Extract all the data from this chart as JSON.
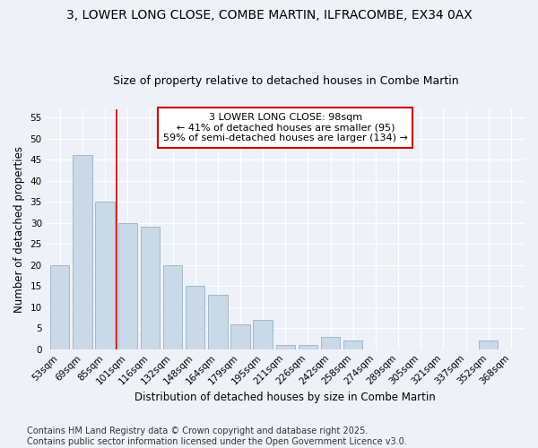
{
  "title": "3, LOWER LONG CLOSE, COMBE MARTIN, ILFRACOMBE, EX34 0AX",
  "subtitle": "Size of property relative to detached houses in Combe Martin",
  "xlabel": "Distribution of detached houses by size in Combe Martin",
  "ylabel": "Number of detached properties",
  "categories": [
    "53sqm",
    "69sqm",
    "85sqm",
    "101sqm",
    "116sqm",
    "132sqm",
    "148sqm",
    "164sqm",
    "179sqm",
    "195sqm",
    "211sqm",
    "226sqm",
    "242sqm",
    "258sqm",
    "274sqm",
    "289sqm",
    "305sqm",
    "321sqm",
    "337sqm",
    "352sqm",
    "368sqm"
  ],
  "values": [
    20,
    46,
    35,
    30,
    29,
    20,
    15,
    13,
    6,
    7,
    1,
    1,
    3,
    2,
    0,
    0,
    0,
    0,
    0,
    2,
    0
  ],
  "bar_color": "#c9d9e8",
  "bar_edge_color": "#a0b8cc",
  "vline_x": 2.5,
  "vline_color": "#cc0000",
  "annotation_text": "3 LOWER LONG CLOSE: 98sqm\n← 41% of detached houses are smaller (95)\n59% of semi-detached houses are larger (134) →",
  "annotation_box_color": "#ffffff",
  "annotation_box_edge_color": "#cc0000",
  "ylim": [
    0,
    57
  ],
  "yticks": [
    0,
    5,
    10,
    15,
    20,
    25,
    30,
    35,
    40,
    45,
    50,
    55
  ],
  "bg_color": "#eef2f8",
  "plot_bg_color": "#eef2f8",
  "footer": "Contains HM Land Registry data © Crown copyright and database right 2025.\nContains public sector information licensed under the Open Government Licence v3.0.",
  "title_fontsize": 10,
  "subtitle_fontsize": 9,
  "axis_label_fontsize": 8.5,
  "tick_fontsize": 7.5,
  "annotation_fontsize": 8,
  "footer_fontsize": 7
}
